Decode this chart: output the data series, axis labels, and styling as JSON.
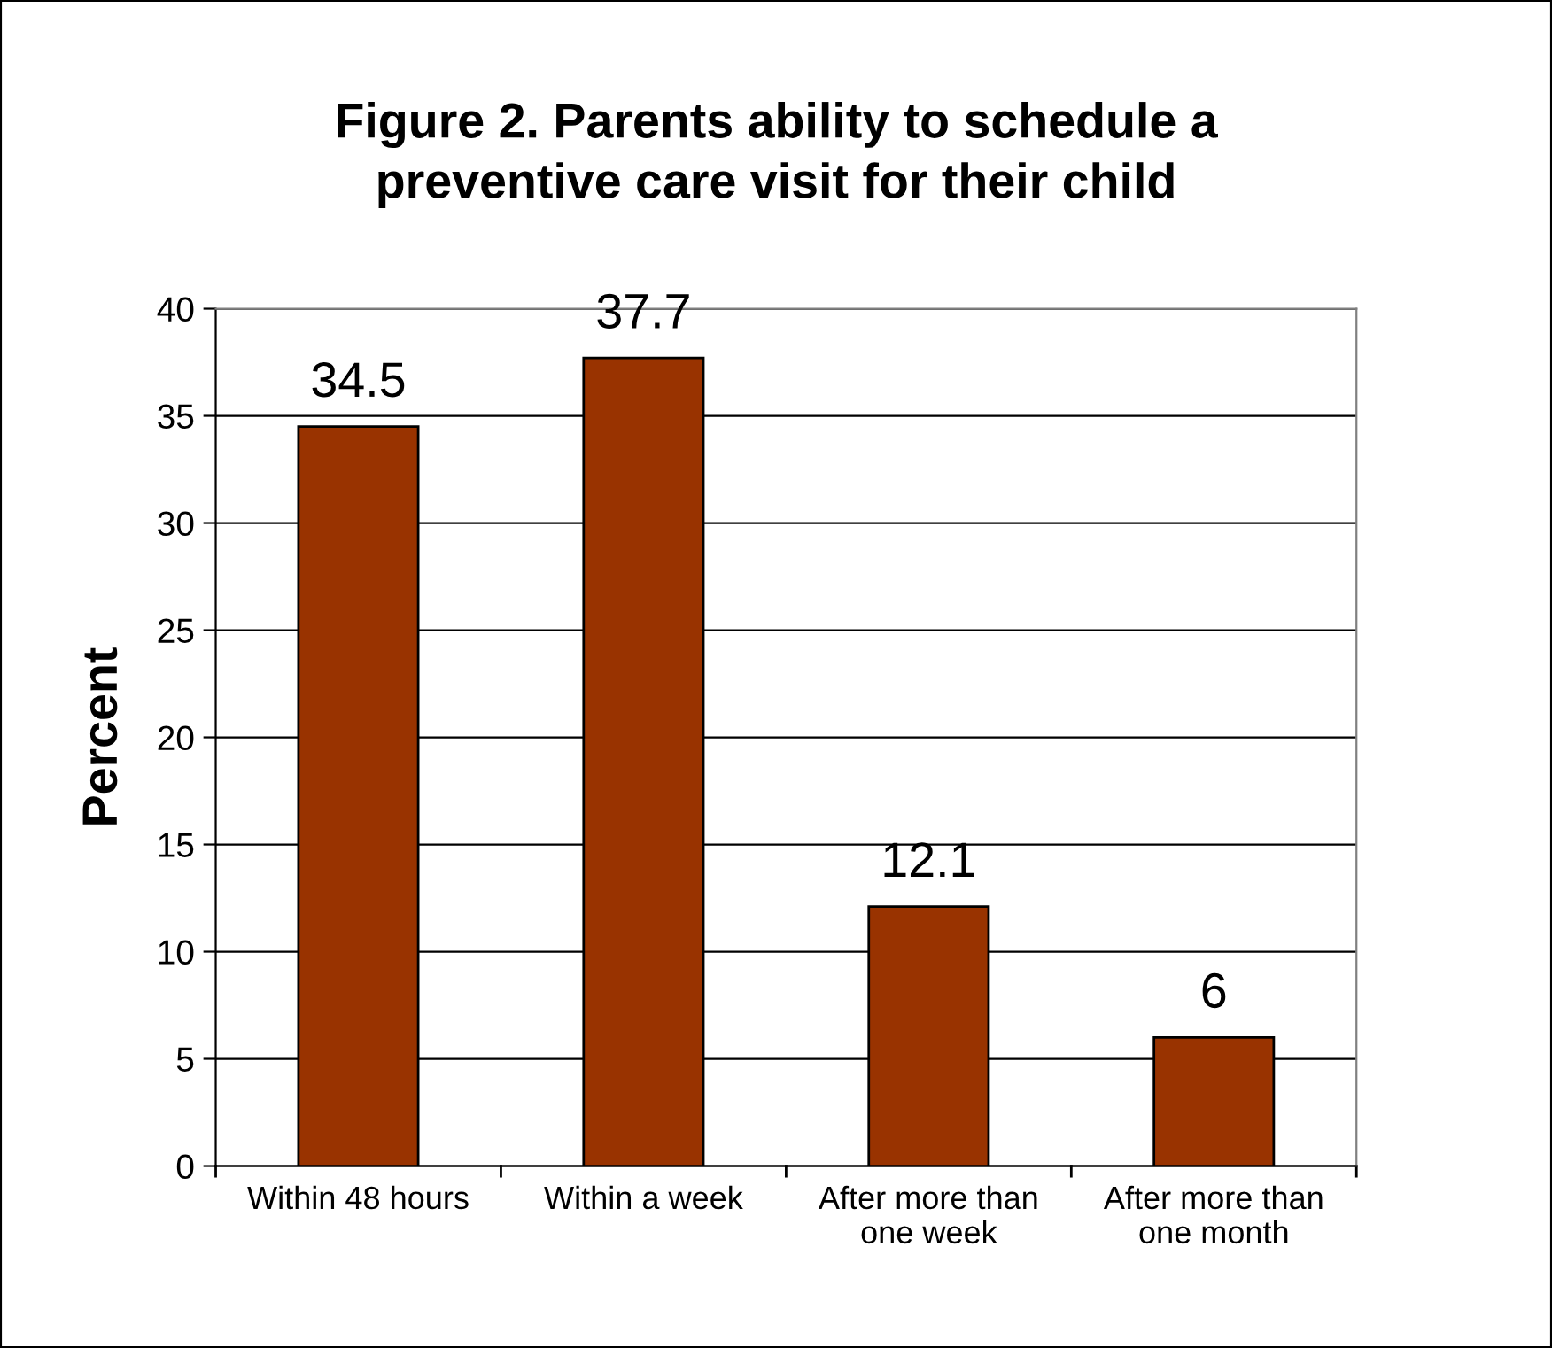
{
  "chart_data": {
    "type": "bar",
    "title": "Figure 2. Parents ability to schedule a\npreventive care visit for their child",
    "ylabel": "Percent",
    "categories": [
      "Within 48 hours",
      "Within a week",
      "After more than\none week",
      "After more than\none month"
    ],
    "values": [
      34.5,
      37.7,
      12.1,
      6
    ],
    "color": "#993300",
    "ylim": [
      0,
      40
    ],
    "yticks": [
      0,
      5,
      10,
      15,
      20,
      25,
      30,
      35,
      40
    ],
    "grid": "y",
    "data_labels": true,
    "legend": false
  }
}
